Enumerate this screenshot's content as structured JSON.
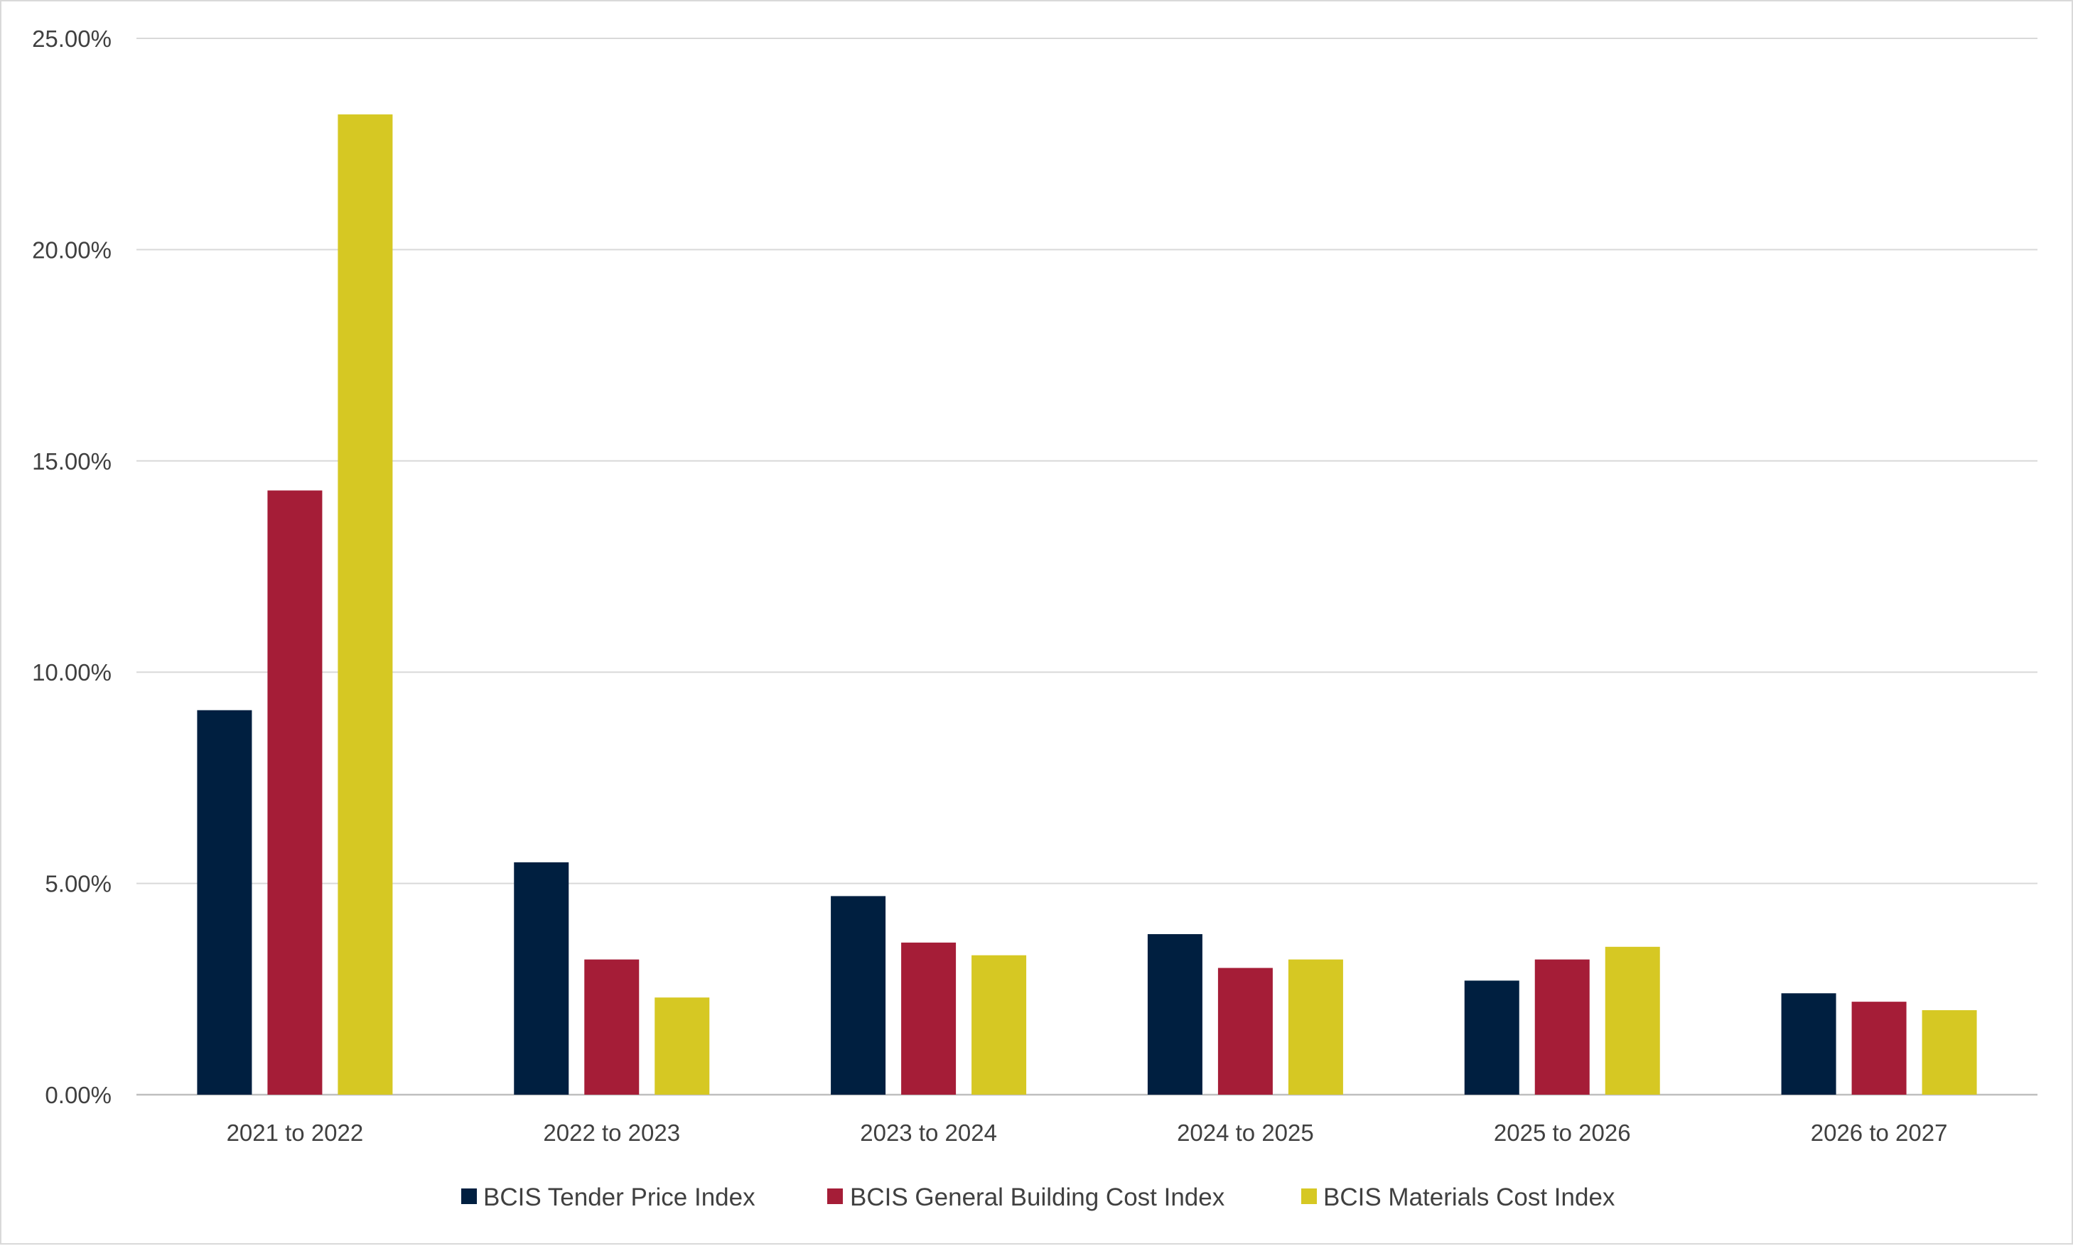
{
  "chart_data": {
    "type": "bar",
    "categories": [
      "2021 to 2022",
      "2022 to 2023",
      "2023 to 2024",
      "2024 to 2025",
      "2025 to 2026",
      "2026 to 2027"
    ],
    "series": [
      {
        "name": "BCIS Tender Price Index",
        "color": "#001f40",
        "values": [
          9.1,
          5.5,
          4.7,
          3.8,
          2.7,
          2.4
        ]
      },
      {
        "name": "BCIS General Building Cost Index",
        "color": "#a51d37",
        "values": [
          14.3,
          3.2,
          3.6,
          3.0,
          3.2,
          2.2
        ]
      },
      {
        "name": "BCIS Materials Cost Index",
        "color": "#d6c823",
        "values": [
          23.2,
          2.3,
          3.3,
          3.2,
          3.5,
          2.0
        ]
      }
    ],
    "y_ticks": [
      "0.00%",
      "5.00%",
      "10.00%",
      "15.00%",
      "20.00%",
      "25.00%"
    ],
    "ylim": [
      0,
      25
    ],
    "y_unit": "percent",
    "grid": true,
    "legend_position": "bottom",
    "title": "",
    "xlabel": "",
    "ylabel": ""
  }
}
